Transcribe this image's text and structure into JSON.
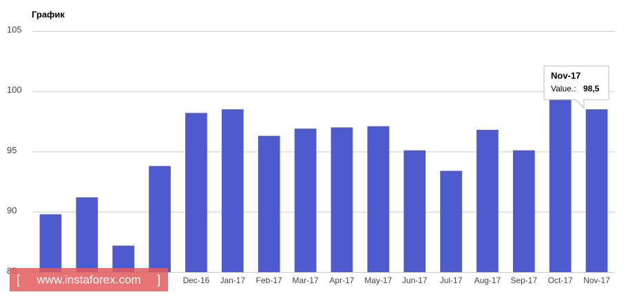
{
  "chart_data": {
    "type": "bar",
    "title": "График",
    "categories": [
      null,
      null,
      null,
      null,
      "Dec-16",
      "Jan-17",
      "Feb-17",
      "Mar-17",
      "Apr-17",
      "May-17",
      "Jun-17",
      "Jul-17",
      "Aug-17",
      "Sep-17",
      "Oct-17",
      "Nov-17"
    ],
    "values": [
      89.8,
      91.2,
      87.2,
      93.8,
      98.2,
      98.5,
      96.3,
      96.9,
      97.0,
      97.1,
      95.1,
      93.4,
      96.8,
      95.1,
      99.4,
      98.5
    ],
    "color": "#4e5acd",
    "ylim": [
      85,
      105
    ],
    "yticks": [
      85,
      90,
      95,
      100,
      105
    ],
    "grid": true,
    "tooltip": {
      "title": "Nov-17",
      "label": "Value.:",
      "value_label": "98,5"
    },
    "watermark": "www.instaforex.com"
  }
}
